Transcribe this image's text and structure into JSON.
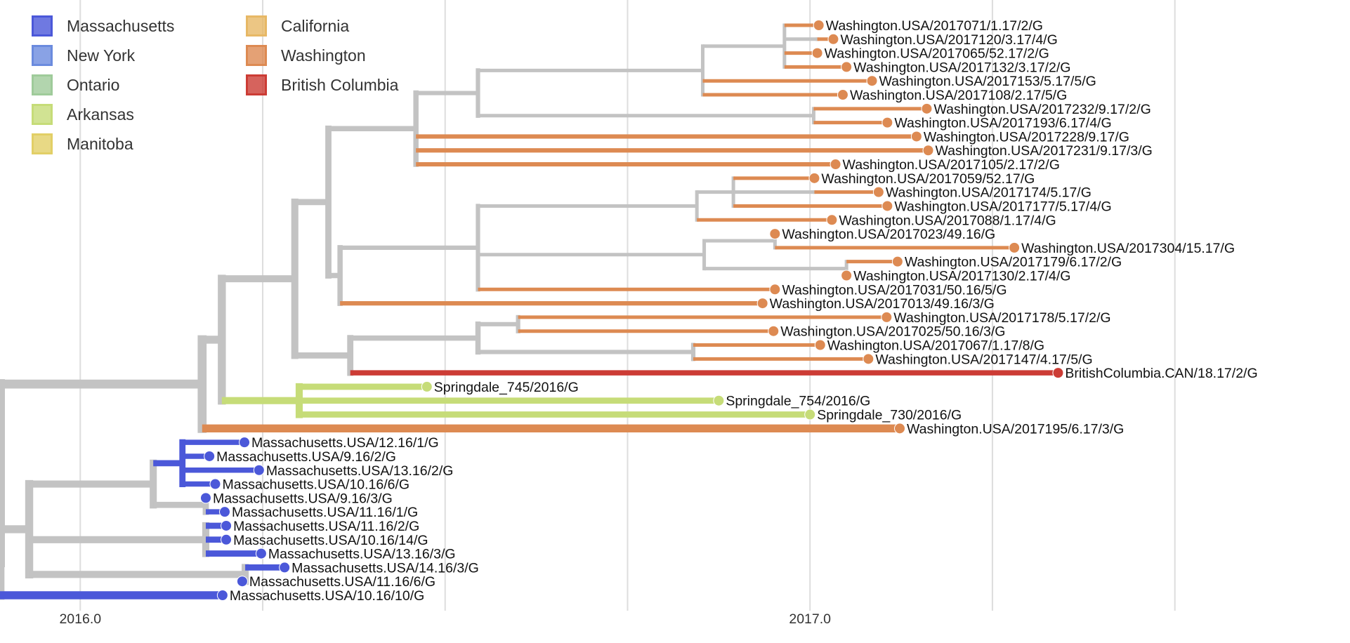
{
  "legend": [
    {
      "label": "Massachusetts",
      "color": "#4B58D9"
    },
    {
      "label": "New York",
      "color": "#6B8BDE"
    },
    {
      "label": "Ontario",
      "color": "#9FCB9A"
    },
    {
      "label": "Arkansas",
      "color": "#C6DC78"
    },
    {
      "label": "Manitoba",
      "color": "#E2CF66"
    },
    {
      "label": "California",
      "color": "#E7B865"
    },
    {
      "label": "Washington",
      "color": "#DD8A52"
    },
    {
      "label": "British Columbia",
      "color": "#CC3C35"
    }
  ],
  "colors": {
    "internal": "#c3c3c3",
    "grid": "#dddddd"
  },
  "chart_data": {
    "type": "tree",
    "x_axis": {
      "ticks": [
        {
          "value": 2016.0,
          "label": "2016.0"
        },
        {
          "value": 2017.0,
          "label": "2017.0"
        }
      ],
      "range": [
        2015.89,
        2017.74
      ],
      "minor_interval": 0.25
    },
    "root": {
      "x": 2015.89,
      "children": [
        {
          "x": 2016.167,
          "children": [
            {
              "x": 2016.194,
              "children": [
                {
                  "x": 2016.294,
                  "children": [
                    {
                      "x": 2016.34,
                      "children": [
                        {
                          "x": 2016.46,
                          "children": [
                            {
                              "x": 2016.545,
                              "children": [
                                {
                                  "x": 2016.853,
                                  "children": [
                                    {
                                      "x": 2016.965,
                                      "children": [
                                        {
                                          "name": "Washington.USA/2017071/1.17/2/G",
                                          "x": 2017.012,
                                          "location": "Washington"
                                        },
                                        {
                                          "x": 2017.01,
                                          "children": [
                                            {
                                              "name": "Washington.USA/2017120/3.17/4/G",
                                              "x": 2017.032,
                                              "location": "Washington"
                                            }
                                          ]
                                        },
                                        {
                                          "name": "Washington.USA/2017065/52.17/2/G",
                                          "x": 2017.01,
                                          "location": "Washington"
                                        },
                                        {
                                          "name": "Washington.USA/2017132/3.17/2/G",
                                          "x": 2017.05,
                                          "location": "Washington"
                                        }
                                      ]
                                    },
                                    {
                                      "name": "Washington.USA/2017153/5.17/5/G",
                                      "x": 2017.085,
                                      "location": "Washington"
                                    },
                                    {
                                      "name": "Washington.USA/2017108/2.17/5/G",
                                      "x": 2017.045,
                                      "location": "Washington"
                                    }
                                  ]
                                },
                                {
                                  "x": 2017.005,
                                  "children": [
                                    {
                                      "name": "Washington.USA/2017232/9.17/2/G",
                                      "x": 2017.16,
                                      "location": "Washington"
                                    },
                                    {
                                      "name": "Washington.USA/2017193/6.17/4/G",
                                      "x": 2017.106,
                                      "location": "Washington"
                                    }
                                  ]
                                }
                              ]
                            },
                            {
                              "name": "Washington.USA/2017228/9.17/G",
                              "x": 2017.146,
                              "location": "Washington"
                            },
                            {
                              "name": "Washington.USA/2017231/9.17/3/G",
                              "x": 2017.162,
                              "location": "Washington"
                            },
                            {
                              "name": "Washington.USA/2017105/2.17/2/G",
                              "x": 2017.035,
                              "location": "Washington"
                            }
                          ]
                        },
                        {
                          "x": 2016.356,
                          "children": [
                            {
                              "x": 2016.545,
                              "children": [
                                {
                                  "x": 2016.845,
                                  "children": [
                                    {
                                      "x": 2016.895,
                                      "children": [
                                        {
                                          "name": "Washington.USA/2017059/52.17/G",
                                          "x": 2017.006,
                                          "location": "Washington"
                                        },
                                        {
                                          "x": 2017.006,
                                          "children": [
                                            {
                                              "name": "Washington.USA/2017174/5.17/G",
                                              "x": 2017.094,
                                              "location": "Washington"
                                            }
                                          ]
                                        },
                                        {
                                          "name": "Washington.USA/2017177/5.17/4/G",
                                          "x": 2017.106,
                                          "location": "Washington"
                                        }
                                      ]
                                    },
                                    {
                                      "name": "Washington.USA/2017088/1.17/4/G",
                                      "x": 2017.03,
                                      "location": "Washington"
                                    }
                                  ]
                                },
                                {
                                  "x": 2016.855,
                                  "children": [
                                    {
                                      "x": 2016.952,
                                      "children": [
                                        {
                                          "name": "Washington.USA/2017023/49.16/G",
                                          "x": 2016.952,
                                          "location": "Washington"
                                        },
                                        {
                                          "name": "Washington.USA/2017304/15.17/G",
                                          "x": 2017.28,
                                          "location": "Washington"
                                        }
                                      ]
                                    },
                                    {
                                      "x": 2017.05,
                                      "children": [
                                        {
                                          "name": "Washington.USA/2017179/6.17/2/G",
                                          "x": 2017.12,
                                          "location": "Washington"
                                        },
                                        {
                                          "name": "Washington.USA/2017130/2.17/4/G",
                                          "x": 2017.05,
                                          "location": "Washington"
                                        }
                                      ]
                                    }
                                  ]
                                },
                                {
                                  "name": "Washington.USA/2017031/50.16/5/G",
                                  "x": 2016.952,
                                  "location": "Washington"
                                }
                              ]
                            },
                            {
                              "name": "Washington.USA/2017013/49.16/3/G",
                              "x": 2016.935,
                              "location": "Washington"
                            }
                          ]
                        }
                      ]
                    },
                    {
                      "x": 2016.37,
                      "children": [
                        {
                          "x": 2016.545,
                          "children": [
                            {
                              "x": 2016.6,
                              "children": [
                                {
                                  "name": "Washington.USA/2017178/5.17/2/G",
                                  "x": 2017.105,
                                  "location": "Washington"
                                },
                                {
                                  "name": "Washington.USA/2017025/50.16/3/G",
                                  "x": 2016.95,
                                  "location": "Washington"
                                }
                              ]
                            },
                            {
                              "x": 2016.84,
                              "children": [
                                {
                                  "name": "Washington.USA/2017067/1.17/8/G",
                                  "x": 2017.014,
                                  "location": "Washington"
                                },
                                {
                                  "name": "Washington.USA/2017147/4.17/5/G",
                                  "x": 2017.08,
                                  "location": "Washington"
                                }
                              ]
                            }
                          ]
                        },
                        {
                          "name": "BritishColumbia.CAN/18.17/2/G",
                          "x": 2017.34,
                          "location": "British Columbia"
                        }
                      ]
                    }
                  ]
                },
                {
                  "x": 2016.3,
                  "location": "Arkansas",
                  "children": [
                    {
                      "name": "Springdale_745/2016/G",
                      "x": 2016.475,
                      "location": "Arkansas"
                    },
                    {
                      "name": "Springdale_754/2016/G",
                      "x": 2016.875,
                      "location": "Arkansas"
                    },
                    {
                      "name": "Springdale_730/2016/G",
                      "x": 2017.0,
                      "location": "Arkansas"
                    }
                  ]
                }
              ]
            },
            {
              "name": "Washington.USA/2017195/6.17/3/G",
              "x": 2017.123,
              "location": "Washington"
            }
          ]
        },
        {
          "x": 2015.89,
          "children": [
            {
              "x": 2015.93,
              "children": [
                {
                  "x": 2016.1,
                  "children": [
                    {
                      "x": 2016.14,
                      "location": "Massachusetts",
                      "children": [
                        {
                          "name": "Massachusetts.USA/12.16/1/G",
                          "x": 2016.225,
                          "location": "Massachusetts"
                        },
                        {
                          "name": "Massachusetts.USA/9.16/2/G",
                          "x": 2016.177,
                          "location": "Massachusetts"
                        },
                        {
                          "name": "Massachusetts.USA/13.16/2/G",
                          "x": 2016.245,
                          "location": "Massachusetts"
                        },
                        {
                          "name": "Massachusetts.USA/10.16/6/G",
                          "x": 2016.185,
                          "location": "Massachusetts"
                        }
                      ]
                    },
                    {
                      "x": 2016.172,
                      "children": [
                        {
                          "name": "Massachusetts.USA/9.16/3/G",
                          "x": 2016.172,
                          "location": "Massachusetts"
                        },
                        {
                          "name": "Massachusetts.USA/11.16/1/G",
                          "x": 2016.198,
                          "location": "Massachusetts"
                        }
                      ]
                    }
                  ]
                },
                {
                  "x": 2016.172,
                  "children": [
                    {
                      "name": "Massachusetts.USA/11.16/2/G",
                      "x": 2016.2,
                      "location": "Massachusetts"
                    },
                    {
                      "name": "Massachusetts.USA/10.16/14/G",
                      "x": 2016.2,
                      "location": "Massachusetts"
                    },
                    {
                      "name": "Massachusetts.USA/13.16/3/G",
                      "x": 2016.248,
                      "location": "Massachusetts"
                    }
                  ]
                },
                {
                  "x": 2016.226,
                  "children": [
                    {
                      "name": "Massachusetts.USA/14.16/3/G",
                      "x": 2016.28,
                      "location": "Massachusetts"
                    },
                    {
                      "name": "Massachusetts.USA/11.16/6/G",
                      "x": 2016.222,
                      "location": "Massachusetts"
                    }
                  ]
                }
              ]
            },
            {
              "name": "Massachusetts.USA/10.16/10/G",
              "x": 2016.195,
              "location": "Massachusetts"
            }
          ]
        }
      ]
    }
  }
}
